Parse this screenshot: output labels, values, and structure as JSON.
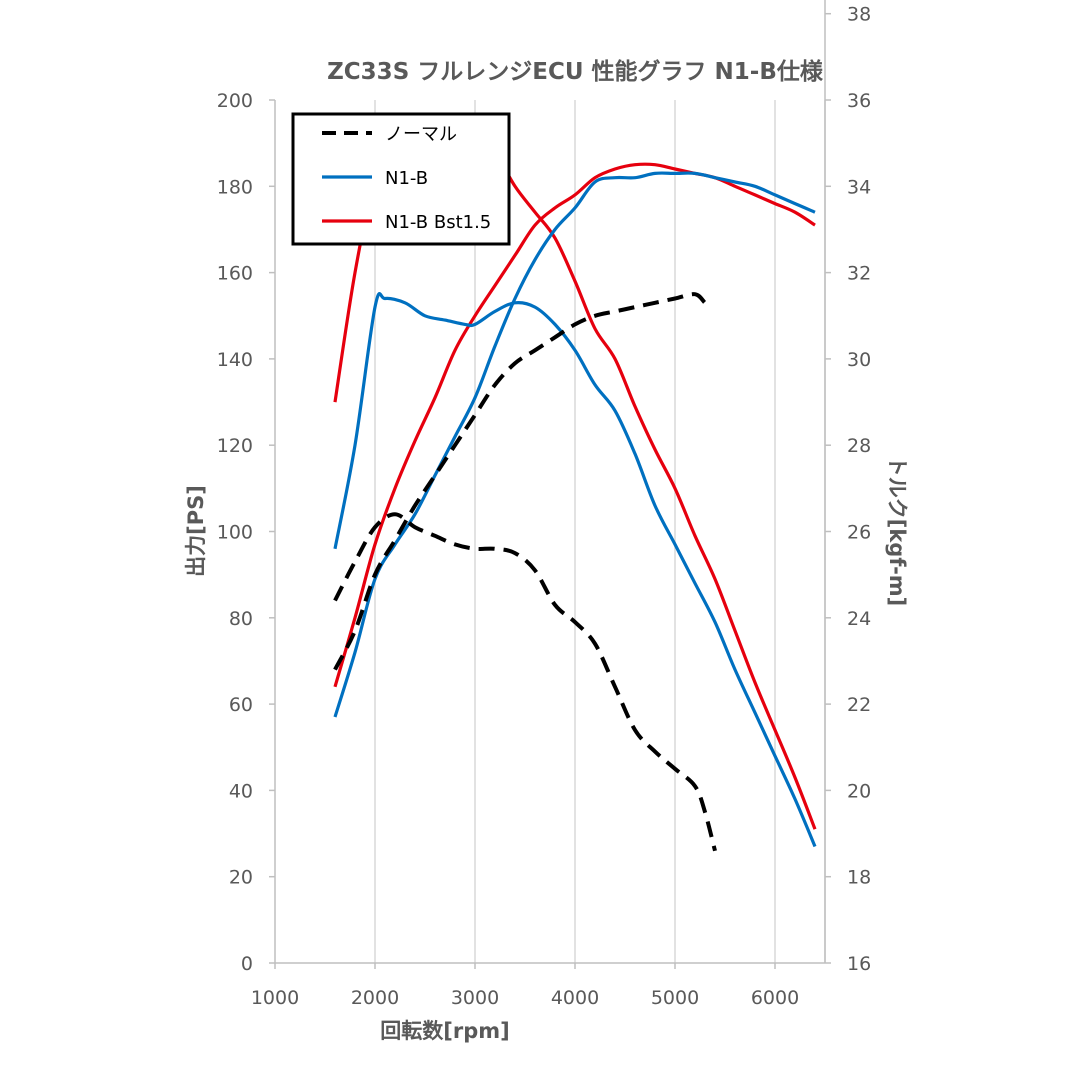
{
  "chart_data": {
    "type": "line",
    "title": "ZC33S フルレンジECU 性能グラフ N1-B仕様",
    "xlabel": "回転数[rpm]",
    "ylabel": "出力[PS]",
    "y2label": "トルク[kgf-m]",
    "xlim": [
      1000,
      6500
    ],
    "ylim": [
      0,
      200
    ],
    "y2lim": [
      16,
      40
    ],
    "xticks": [
      "1000",
      "2000",
      "3000",
      "4000",
      "5000",
      "6000"
    ],
    "yticks": [
      "0",
      "20",
      "40",
      "60",
      "80",
      "100",
      "120",
      "140",
      "160",
      "180",
      "200"
    ],
    "y2ticks": [
      "16",
      "18",
      "20",
      "22",
      "24",
      "26",
      "28",
      "30",
      "32",
      "34",
      "36",
      "38"
    ],
    "grid": "vertical",
    "legend_position": "top-left",
    "legend": [
      {
        "label": "ノーマル",
        "color": "#000000",
        "dash": true
      },
      {
        "label": "N1-B",
        "color": "#0070c0",
        "dash": false
      },
      {
        "label": "N1-B Bst1.5",
        "color": "#e6000e",
        "dash": false
      }
    ],
    "series": [
      {
        "name": "ノーマル",
        "kind": "power",
        "axis": "left",
        "color": "#000000",
        "dash": true,
        "x": [
          1600,
          1800,
          2000,
          2200,
          2400,
          2600,
          2800,
          3000,
          3200,
          3400,
          3600,
          3800,
          4000,
          4200,
          4400,
          4600,
          4800,
          5000,
          5200,
          5300,
          5350
        ],
        "y": [
          68,
          77,
          90,
          98,
          106,
          113,
          120,
          127,
          134,
          139,
          142,
          145,
          148,
          150,
          151,
          152,
          153,
          154,
          155,
          153,
          152
        ]
      },
      {
        "name": "N1-B",
        "kind": "power",
        "axis": "left",
        "color": "#0070c0",
        "dash": false,
        "x": [
          1600,
          1800,
          2000,
          2200,
          2400,
          2600,
          2800,
          3000,
          3200,
          3400,
          3600,
          3800,
          4000,
          4200,
          4400,
          4600,
          4800,
          5000,
          5200,
          5400,
          5600,
          5800,
          6000,
          6200,
          6400
        ],
        "y": [
          57,
          72,
          89,
          97,
          104,
          113,
          122,
          131,
          143,
          154,
          163,
          170,
          175,
          181,
          182,
          182,
          183,
          183,
          183,
          182,
          181,
          180,
          178,
          176,
          174
        ]
      },
      {
        "name": "N1-B Bst1.5",
        "kind": "power",
        "axis": "left",
        "color": "#e6000e",
        "dash": false,
        "x": [
          1600,
          1800,
          2000,
          2200,
          2400,
          2600,
          2800,
          3000,
          3200,
          3400,
          3600,
          3800,
          4000,
          4200,
          4400,
          4600,
          4800,
          5000,
          5200,
          5400,
          5600,
          5800,
          6000,
          6200,
          6400
        ],
        "y": [
          64,
          80,
          97,
          110,
          121,
          131,
          142,
          150,
          157,
          164,
          171,
          175,
          178,
          182,
          184,
          185,
          185,
          184,
          183,
          182,
          180,
          178,
          176,
          174,
          171
        ]
      },
      {
        "name": "ノーマル",
        "kind": "torque",
        "axis": "right",
        "color": "#000000",
        "dash": true,
        "x": [
          1600,
          1800,
          2000,
          2200,
          2400,
          2600,
          2800,
          3000,
          3200,
          3400,
          3600,
          3800,
          4000,
          4200,
          4400,
          4600,
          4800,
          5000,
          5200,
          5300,
          5400
        ],
        "y": [
          24.4,
          25.3,
          26.1,
          26.4,
          26.1,
          25.9,
          25.7,
          25.6,
          25.6,
          25.5,
          25.1,
          24.3,
          23.9,
          23.4,
          22.4,
          21.4,
          20.9,
          20.5,
          20.1,
          19.5,
          18.6
        ]
      },
      {
        "name": "N1-B",
        "kind": "torque",
        "axis": "right",
        "color": "#0070c0",
        "dash": false,
        "x": [
          1600,
          1800,
          2000,
          2100,
          2300,
          2500,
          2700,
          2900,
          3000,
          3200,
          3400,
          3600,
          3800,
          4000,
          4200,
          4400,
          4600,
          4800,
          5000,
          5200,
          5400,
          5600,
          5800,
          6000,
          6200,
          6400
        ],
        "y": [
          25.6,
          28.0,
          31.2,
          31.4,
          31.3,
          31.0,
          30.9,
          30.8,
          30.8,
          31.1,
          31.3,
          31.2,
          30.8,
          30.2,
          29.4,
          28.8,
          27.8,
          26.6,
          25.7,
          24.8,
          23.9,
          22.8,
          21.8,
          20.8,
          19.8,
          18.7
        ]
      },
      {
        "name": "N1-B Bst1.5",
        "kind": "torque",
        "axis": "right",
        "color": "#e6000e",
        "dash": false,
        "x": [
          1600,
          1800,
          2000,
          2200,
          2400,
          2600,
          2800,
          3000,
          3200,
          3400,
          3600,
          3800,
          4000,
          4200,
          4400,
          4600,
          4800,
          5000,
          5200,
          5400,
          5600,
          5800,
          6000,
          6200,
          6400
        ],
        "y": [
          29.0,
          32.0,
          34.2,
          35.3,
          35.5,
          35.6,
          35.6,
          35.4,
          34.8,
          34.0,
          33.4,
          32.8,
          31.8,
          30.7,
          30.0,
          28.9,
          27.9,
          27.0,
          25.9,
          24.9,
          23.7,
          22.5,
          21.4,
          20.3,
          19.1
        ]
      }
    ]
  }
}
